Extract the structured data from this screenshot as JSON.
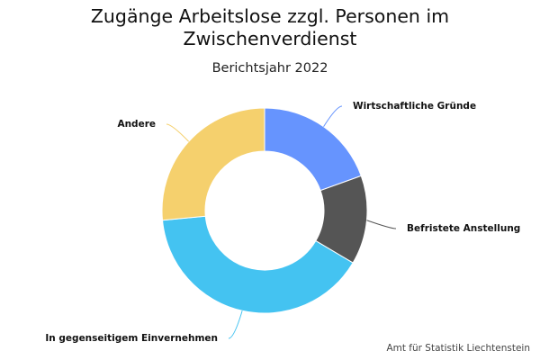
{
  "title_lines": [
    "Zugänge Arbeitslose zzgl. Personen im",
    "Zwischenverdienst"
  ],
  "subtitle": "Berichtsjahr 2022",
  "credit": "Amt für Statistik Liechtenstein",
  "chart_data": {
    "type": "pie",
    "donut": true,
    "title": "Zugänge Arbeitslose zzgl. Personen im Zwischenverdienst",
    "subtitle": "Berichtsjahr 2022",
    "legend": "none",
    "slices": [
      {
        "label": "Wirtschaftliche Gründe",
        "value": 19.5,
        "color": "#6694fe"
      },
      {
        "label": "Befristete Anstellung",
        "value": 14.0,
        "color": "#555555"
      },
      {
        "label": "In gegenseitigem Einvernehmen",
        "value": 40.0,
        "color": "#44c3f1"
      },
      {
        "label": "Andere",
        "value": 26.5,
        "color": "#f5d06d"
      }
    ]
  }
}
